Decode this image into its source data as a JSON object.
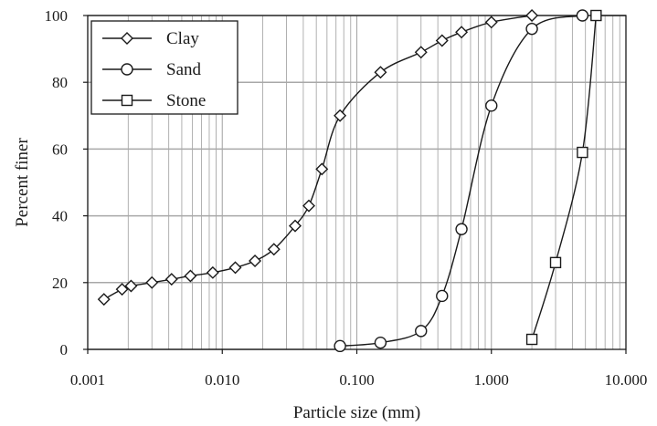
{
  "chart_data": {
    "type": "line",
    "title": "",
    "xlabel": "Particle size (mm)",
    "ylabel": "Percent finer",
    "xscale": "log",
    "xlim": [
      0.001,
      10
    ],
    "ylim": [
      0,
      100
    ],
    "x_ticks": [
      0.001,
      0.01,
      0.1,
      1,
      10
    ],
    "x_tick_labels": [
      "0.001",
      "0.010",
      "0.100",
      "1.000",
      "10.000"
    ],
    "y_ticks": [
      0,
      20,
      40,
      60,
      80,
      100
    ],
    "y_tick_labels": [
      "0",
      "20",
      "40",
      "60",
      "80",
      "100"
    ],
    "grid": true,
    "legend_position": "top-left",
    "series": [
      {
        "name": "Clay",
        "marker": "diamond",
        "x": [
          0.00132,
          0.0018,
          0.0021,
          0.003,
          0.0042,
          0.0058,
          0.0085,
          0.0125,
          0.0175,
          0.0242,
          0.0348,
          0.044,
          0.055,
          0.075,
          0.15,
          0.3,
          0.43,
          0.6,
          1.0,
          2.0
        ],
        "y": [
          15,
          18,
          19,
          20,
          21,
          22,
          23,
          24.5,
          26.5,
          30,
          37,
          43,
          54,
          70,
          83,
          89,
          92.5,
          95,
          98,
          100
        ]
      },
      {
        "name": "Sand",
        "marker": "circle",
        "x": [
          0.075,
          0.15,
          0.3,
          0.43,
          0.6,
          1.0,
          2.0,
          4.75
        ],
        "y": [
          1,
          2,
          5.5,
          16,
          36,
          73,
          96,
          100
        ]
      },
      {
        "name": "Stone",
        "marker": "square",
        "x": [
          2.0,
          3.0,
          4.75,
          6.0
        ],
        "y": [
          3,
          26,
          59,
          100
        ]
      }
    ],
    "colors": {
      "line": "#1a1a1a",
      "grid": "#a8a8a8",
      "marker_fill": "#ffffff"
    }
  }
}
